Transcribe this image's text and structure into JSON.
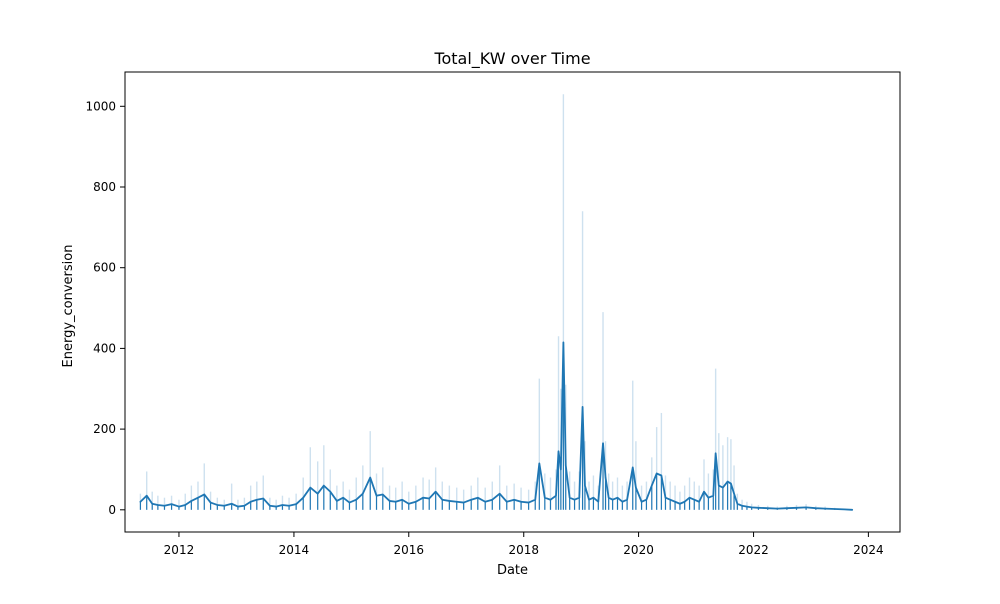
{
  "chart_data": {
    "type": "line",
    "title": "Total_KW over Time",
    "xlabel": "Date",
    "ylabel": "Energy_conversion",
    "x_ticks": [
      "2012",
      "2014",
      "2016",
      "2018",
      "2020",
      "2022",
      "2024"
    ],
    "y_ticks": [
      "0",
      "200",
      "400",
      "600",
      "800",
      "1000"
    ],
    "xlim": [
      "2011-01-23",
      "2024-07-20"
    ],
    "ylim": [
      -55,
      1085
    ],
    "grid": false,
    "legend": "none",
    "colors": {
      "line": "#1f77b4",
      "band": "#1f77b4"
    },
    "series": [
      {
        "x": [
          "2011-05-01",
          "2011-06-10",
          "2011-07-15",
          "2011-08-20",
          "2011-10-01",
          "2011-11-15",
          "2012-01-01",
          "2012-02-10",
          "2012-03-20",
          "2012-05-01",
          "2012-06-10",
          "2012-07-20",
          "2012-09-01",
          "2012-10-15",
          "2012-12-01",
          "2013-01-10",
          "2013-02-20",
          "2013-04-01",
          "2013-05-10",
          "2013-06-20",
          "2013-08-01",
          "2013-09-10",
          "2013-10-20",
          "2013-12-01",
          "2014-01-15",
          "2014-03-01",
          "2014-04-15",
          "2014-06-01",
          "2014-07-10",
          "2014-08-20",
          "2014-10-01",
          "2014-11-10",
          "2014-12-20",
          "2015-02-01",
          "2015-03-15",
          "2015-05-01",
          "2015-06-10",
          "2015-07-20",
          "2015-09-01",
          "2015-10-10",
          "2015-11-20",
          "2016-01-01",
          "2016-02-15",
          "2016-04-01",
          "2016-05-10",
          "2016-06-20",
          "2016-08-01",
          "2016-09-15",
          "2016-11-01",
          "2016-12-15",
          "2017-02-01",
          "2017-03-15",
          "2017-05-01",
          "2017-06-15",
          "2017-08-01",
          "2017-09-15",
          "2017-11-01",
          "2017-12-15",
          "2018-02-01",
          "2018-03-15",
          "2018-04-10",
          "2018-05-15",
          "2018-06-20",
          "2018-07-25",
          "2018-08-10",
          "2018-08-25",
          "2018-09-10",
          "2018-09-25",
          "2018-10-20",
          "2018-11-20",
          "2018-12-20",
          "2019-01-10",
          "2019-01-25",
          "2019-02-20",
          "2019-03-20",
          "2019-04-20",
          "2019-05-20",
          "2019-06-05",
          "2019-06-25",
          "2019-07-20",
          "2019-08-20",
          "2019-09-20",
          "2019-10-20",
          "2019-11-25",
          "2019-12-15",
          "2020-01-20",
          "2020-02-20",
          "2020-03-25",
          "2020-04-25",
          "2020-05-25",
          "2020-06-20",
          "2020-07-20",
          "2020-08-20",
          "2020-09-20",
          "2020-10-20",
          "2020-11-20",
          "2020-12-20",
          "2021-01-20",
          "2021-02-20",
          "2021-03-20",
          "2021-04-20",
          "2021-05-05",
          "2021-05-25",
          "2021-06-20",
          "2021-07-20",
          "2021-08-10",
          "2021-08-30",
          "2021-09-20",
          "2021-10-20",
          "2021-11-20",
          "2021-12-20",
          "2022-02-01",
          "2022-04-01",
          "2022-06-01",
          "2022-08-01",
          "2022-10-01",
          "2022-12-01",
          "2023-02-01",
          "2023-04-01",
          "2023-06-01",
          "2023-08-01",
          "2023-09-20"
        ],
        "y": [
          20,
          35,
          15,
          12,
          10,
          14,
          8,
          12,
          22,
          30,
          38,
          18,
          12,
          10,
          15,
          8,
          10,
          20,
          25,
          28,
          10,
          8,
          12,
          10,
          14,
          30,
          55,
          40,
          60,
          45,
          22,
          30,
          18,
          25,
          40,
          80,
          35,
          38,
          22,
          20,
          25,
          15,
          20,
          30,
          28,
          45,
          25,
          22,
          20,
          18,
          25,
          30,
          20,
          25,
          40,
          20,
          25,
          20,
          18,
          25,
          115,
          30,
          25,
          35,
          145,
          100,
          415,
          110,
          30,
          25,
          30,
          255,
          60,
          25,
          30,
          20,
          165,
          80,
          30,
          25,
          30,
          20,
          25,
          105,
          55,
          20,
          25,
          60,
          90,
          85,
          30,
          25,
          20,
          15,
          20,
          30,
          25,
          20,
          45,
          30,
          35,
          140,
          60,
          55,
          70,
          65,
          40,
          15,
          10,
          8,
          6,
          5,
          4,
          3,
          4,
          5,
          6,
          4,
          3,
          2,
          1,
          0
        ],
        "upper": [
          40,
          95,
          45,
          35,
          30,
          35,
          25,
          40,
          60,
          70,
          115,
          45,
          30,
          25,
          65,
          25,
          30,
          60,
          70,
          85,
          30,
          25,
          35,
          30,
          40,
          80,
          155,
          120,
          160,
          100,
          60,
          70,
          50,
          80,
          110,
          195,
          90,
          105,
          60,
          55,
          70,
          45,
          60,
          80,
          75,
          105,
          70,
          60,
          55,
          50,
          60,
          80,
          55,
          70,
          110,
          60,
          65,
          55,
          50,
          70,
          325,
          90,
          80,
          100,
          430,
          300,
          1030,
          310,
          95,
          70,
          95,
          740,
          170,
          70,
          85,
          60,
          490,
          170,
          90,
          70,
          80,
          60,
          70,
          320,
          170,
          60,
          70,
          130,
          205,
          240,
          85,
          70,
          60,
          45,
          60,
          80,
          70,
          60,
          125,
          90,
          100,
          350,
          190,
          160,
          180,
          175,
          110,
          40,
          25,
          20,
          15,
          12,
          10,
          8,
          10,
          12,
          14,
          10,
          8,
          5,
          3,
          1
        ],
        "lower": [
          0,
          0,
          0,
          0,
          0,
          0,
          0,
          0,
          0,
          0,
          0,
          0,
          0,
          0,
          0,
          0,
          0,
          0,
          0,
          0,
          0,
          0,
          0,
          0,
          0,
          0,
          0,
          0,
          0,
          0,
          0,
          0,
          0,
          0,
          0,
          0,
          0,
          0,
          0,
          0,
          0,
          0,
          0,
          0,
          0,
          0,
          0,
          0,
          0,
          0,
          0,
          0,
          0,
          0,
          0,
          0,
          0,
          0,
          0,
          0,
          0,
          0,
          0,
          0,
          0,
          0,
          0,
          0,
          0,
          0,
          0,
          0,
          0,
          0,
          0,
          0,
          0,
          0,
          0,
          0,
          0,
          0,
          0,
          0,
          0,
          0,
          0,
          0,
          0,
          0,
          0,
          0,
          0,
          0,
          0,
          0,
          0,
          0,
          0,
          0,
          0,
          0,
          0,
          0,
          0,
          0,
          0,
          0,
          0,
          0,
          0,
          0,
          0,
          0,
          0,
          0,
          0,
          0,
          0,
          0,
          0,
          0
        ]
      }
    ]
  }
}
